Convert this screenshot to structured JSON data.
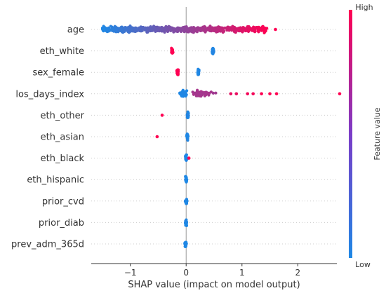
{
  "chart_data": {
    "type": "scatter",
    "subtype": "shap-beeswarm",
    "xlabel": "SHAP value (impact on model output)",
    "xlim": [
      -1.7,
      2.7
    ],
    "x_ticks": [
      -1,
      0,
      1,
      2
    ],
    "x_tick_labels": [
      "−1",
      "0",
      "1",
      "2"
    ],
    "grid": false,
    "features": [
      {
        "name": "age",
        "clusters": [
          {
            "x_min": -1.5,
            "x_max": 1.45,
            "density": "dense",
            "color_gradient": "low_to_high"
          }
        ],
        "points": [
          {
            "x": 1.6,
            "v": 1.0
          }
        ]
      },
      {
        "name": "eth_white",
        "clusters": [
          {
            "x": -0.25,
            "v": 1.0,
            "spread": 0.02,
            "n": 40
          },
          {
            "x": 0.48,
            "v": 0.0,
            "spread": 0.02,
            "n": 40
          }
        ]
      },
      {
        "name": "sex_female",
        "clusters": [
          {
            "x": -0.15,
            "v": 1.0,
            "spread": 0.02,
            "n": 40
          },
          {
            "x": 0.22,
            "v": 0.0,
            "spread": 0.02,
            "n": 40
          }
        ]
      },
      {
        "name": "los_days_index",
        "clusters": [
          {
            "x": -0.05,
            "v": 0.0,
            "spread": 0.08,
            "n": 60
          },
          {
            "x": 0.3,
            "v": 0.6,
            "spread": 0.3,
            "n": 50
          }
        ],
        "points": [
          {
            "x": 0.8,
            "v": 0.9
          },
          {
            "x": 0.9,
            "v": 0.9
          },
          {
            "x": 1.1,
            "v": 0.95
          },
          {
            "x": 1.2,
            "v": 0.95
          },
          {
            "x": 1.35,
            "v": 1.0
          },
          {
            "x": 1.5,
            "v": 1.0
          },
          {
            "x": 1.62,
            "v": 1.0
          },
          {
            "x": 2.75,
            "v": 1.0
          }
        ]
      },
      {
        "name": "eth_other",
        "clusters": [
          {
            "x": 0.03,
            "v": 0.0,
            "spread": 0.02,
            "n": 30
          }
        ],
        "points": [
          {
            "x": -0.43,
            "v": 1.0
          }
        ]
      },
      {
        "name": "eth_asian",
        "clusters": [
          {
            "x": 0.02,
            "v": 0.0,
            "spread": 0.02,
            "n": 30
          }
        ],
        "points": [
          {
            "x": -0.52,
            "v": 1.0
          }
        ]
      },
      {
        "name": "eth_black",
        "clusters": [
          {
            "x": 0.0,
            "v": 0.0,
            "spread": 0.02,
            "n": 30
          }
        ],
        "points": [
          {
            "x": 0.05,
            "v": 1.0
          }
        ]
      },
      {
        "name": "eth_hispanic",
        "clusters": [
          {
            "x": 0.0,
            "v": 0.0,
            "spread": 0.02,
            "n": 30
          }
        ]
      },
      {
        "name": "prior_cvd",
        "clusters": [
          {
            "x": 0.0,
            "v": 0.0,
            "spread": 0.02,
            "n": 30
          }
        ]
      },
      {
        "name": "prior_diab",
        "clusters": [
          {
            "x": 0.0,
            "v": 0.0,
            "spread": 0.02,
            "n": 30
          }
        ]
      },
      {
        "name": "prev_adm_365d",
        "clusters": [
          {
            "x": -0.01,
            "v": 0.0,
            "spread": 0.02,
            "n": 30
          }
        ]
      }
    ],
    "colorbar": {
      "label": "Feature value",
      "high_label": "High",
      "low_label": "Low",
      "low_color": "#1e88e5",
      "high_color": "#ff0052"
    }
  }
}
